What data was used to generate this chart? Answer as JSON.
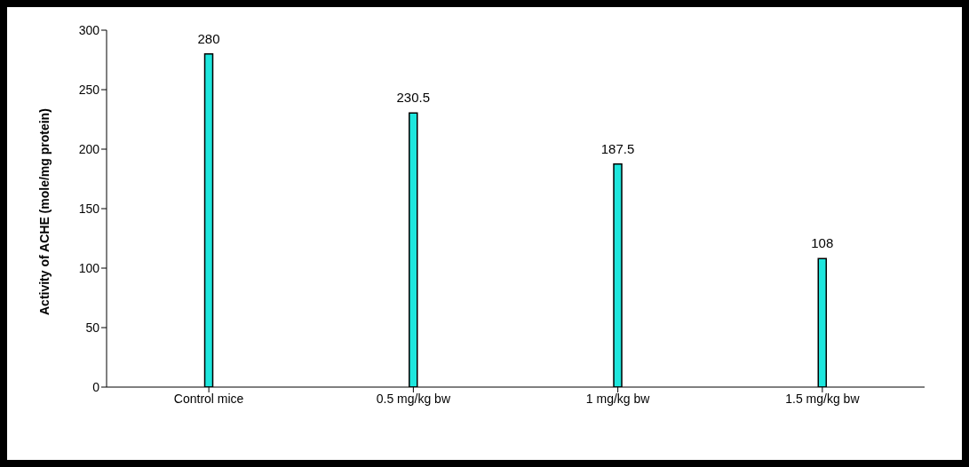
{
  "chart_data": {
    "type": "bar",
    "ylabel": "Activity of ACHE (mole/mg protein)",
    "categories": [
      "Control mice",
      "0.5 mg/kg bw",
      "1 mg/kg bw",
      "1.5 mg/kg bw"
    ],
    "values": [
      280,
      230.5,
      187.5,
      108
    ],
    "color": "#1ee6dd",
    "ylim": [
      0,
      300
    ],
    "yticks": [
      0,
      50,
      100,
      150,
      200,
      250,
      300
    ],
    "grid": false,
    "legend": false,
    "data_labels": true
  }
}
